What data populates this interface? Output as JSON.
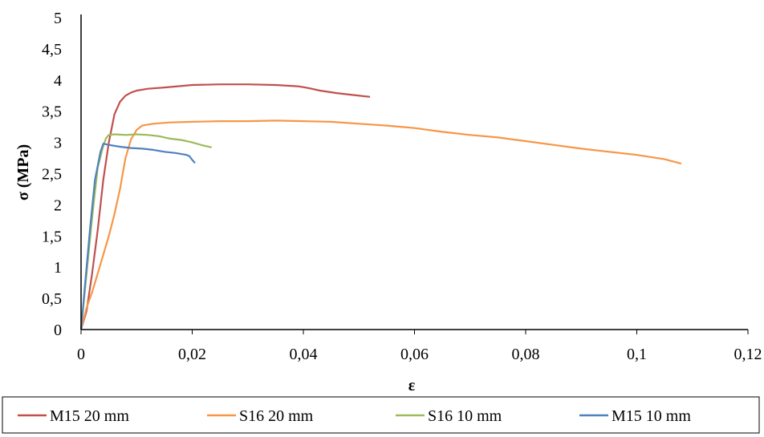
{
  "chart_data": {
    "type": "line",
    "title": "",
    "xlabel": "ε",
    "ylabel": "σ (MPa)",
    "xlim": [
      0,
      0.12
    ],
    "ylim": [
      0,
      5
    ],
    "x_ticks": [
      "0",
      "0,02",
      "0,04",
      "0,06",
      "0,08",
      "0,1",
      "0,12"
    ],
    "y_ticks": [
      "0",
      "0,5",
      "1",
      "1,5",
      "2",
      "2,5",
      "3",
      "3,5",
      "4",
      "4,5",
      "5"
    ],
    "grid": false,
    "legend_position": "bottom",
    "series": [
      {
        "name": "M15 20 mm",
        "color": "#C0504D",
        "points": [
          [
            0,
            0
          ],
          [
            0.001,
            0.3
          ],
          [
            0.002,
            0.9
          ],
          [
            0.003,
            1.6
          ],
          [
            0.004,
            2.4
          ],
          [
            0.005,
            3.0
          ],
          [
            0.006,
            3.45
          ],
          [
            0.007,
            3.65
          ],
          [
            0.008,
            3.75
          ],
          [
            0.009,
            3.8
          ],
          [
            0.01,
            3.83
          ],
          [
            0.012,
            3.86
          ],
          [
            0.015,
            3.88
          ],
          [
            0.02,
            3.92
          ],
          [
            0.025,
            3.93
          ],
          [
            0.03,
            3.93
          ],
          [
            0.035,
            3.92
          ],
          [
            0.039,
            3.9
          ],
          [
            0.041,
            3.87
          ],
          [
            0.043,
            3.83
          ],
          [
            0.046,
            3.79
          ],
          [
            0.049,
            3.76
          ],
          [
            0.052,
            3.73
          ]
        ]
      },
      {
        "name": "S16 20 mm",
        "color": "#F79646",
        "points": [
          [
            0,
            0
          ],
          [
            0.001,
            0.35
          ],
          [
            0.002,
            0.6
          ],
          [
            0.003,
            0.9
          ],
          [
            0.004,
            1.2
          ],
          [
            0.005,
            1.5
          ],
          [
            0.006,
            1.85
          ],
          [
            0.007,
            2.25
          ],
          [
            0.0075,
            2.5
          ],
          [
            0.008,
            2.75
          ],
          [
            0.009,
            3.05
          ],
          [
            0.01,
            3.2
          ],
          [
            0.011,
            3.27
          ],
          [
            0.013,
            3.3
          ],
          [
            0.016,
            3.32
          ],
          [
            0.02,
            3.33
          ],
          [
            0.025,
            3.34
          ],
          [
            0.03,
            3.34
          ],
          [
            0.035,
            3.35
          ],
          [
            0.04,
            3.34
          ],
          [
            0.045,
            3.33
          ],
          [
            0.05,
            3.3
          ],
          [
            0.055,
            3.27
          ],
          [
            0.06,
            3.23
          ],
          [
            0.065,
            3.17
          ],
          [
            0.07,
            3.12
          ],
          [
            0.075,
            3.08
          ],
          [
            0.08,
            3.02
          ],
          [
            0.085,
            2.96
          ],
          [
            0.09,
            2.9
          ],
          [
            0.095,
            2.85
          ],
          [
            0.1,
            2.8
          ],
          [
            0.105,
            2.73
          ],
          [
            0.108,
            2.66
          ]
        ]
      },
      {
        "name": "S16 10 mm",
        "color": "#9BBB59",
        "points": [
          [
            0,
            0
          ],
          [
            0.001,
            0.9
          ],
          [
            0.002,
            1.8
          ],
          [
            0.003,
            2.6
          ],
          [
            0.004,
            2.95
          ],
          [
            0.0045,
            3.07
          ],
          [
            0.005,
            3.12
          ],
          [
            0.006,
            3.13
          ],
          [
            0.008,
            3.12
          ],
          [
            0.01,
            3.13
          ],
          [
            0.012,
            3.12
          ],
          [
            0.014,
            3.1
          ],
          [
            0.016,
            3.06
          ],
          [
            0.018,
            3.04
          ],
          [
            0.02,
            3.0
          ],
          [
            0.022,
            2.95
          ],
          [
            0.0235,
            2.92
          ]
        ]
      },
      {
        "name": "M15 10 mm",
        "color": "#4F81BD",
        "points": [
          [
            0,
            0
          ],
          [
            0.0008,
            0.8
          ],
          [
            0.0016,
            1.6
          ],
          [
            0.0025,
            2.4
          ],
          [
            0.0035,
            2.85
          ],
          [
            0.004,
            2.98
          ],
          [
            0.005,
            2.96
          ],
          [
            0.007,
            2.93
          ],
          [
            0.009,
            2.91
          ],
          [
            0.011,
            2.9
          ],
          [
            0.013,
            2.88
          ],
          [
            0.015,
            2.85
          ],
          [
            0.017,
            2.83
          ],
          [
            0.019,
            2.8
          ],
          [
            0.0195,
            2.78
          ],
          [
            0.02,
            2.72
          ],
          [
            0.0205,
            2.67
          ]
        ]
      }
    ]
  }
}
